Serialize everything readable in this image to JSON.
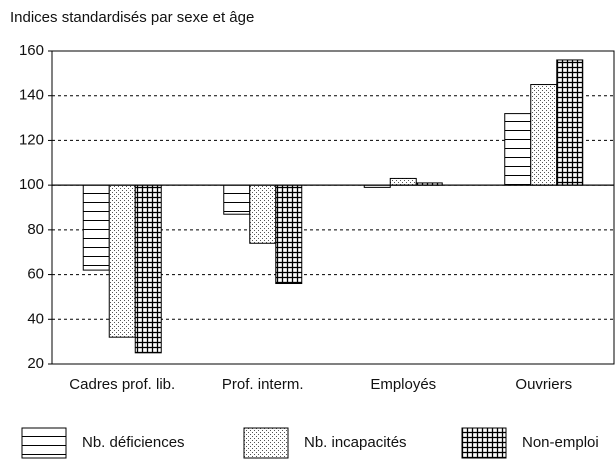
{
  "chart_data": {
    "type": "bar",
    "title": "Indices standardisés par sexe et âge",
    "categories": [
      "Cadres prof. lib.",
      "Prof. interm.",
      "Employés",
      "Ouvriers"
    ],
    "series": [
      {
        "name": "Nb. déficiences",
        "color": "#000000",
        "pattern": "hlines",
        "values": [
          62,
          87,
          99,
          132
        ]
      },
      {
        "name": "Nb. incapacités",
        "color": "#000000",
        "pattern": "dots",
        "values": [
          32,
          74,
          103,
          145
        ]
      },
      {
        "name": "Non-emploi",
        "color": "#000000",
        "pattern": "grid",
        "values": [
          25,
          56,
          101,
          156
        ]
      }
    ],
    "baseline": 100,
    "ylim": [
      20,
      160
    ],
    "yticks": [
      20,
      40,
      60,
      80,
      100,
      120,
      140,
      160
    ],
    "grid": true,
    "legend": "bottom"
  }
}
